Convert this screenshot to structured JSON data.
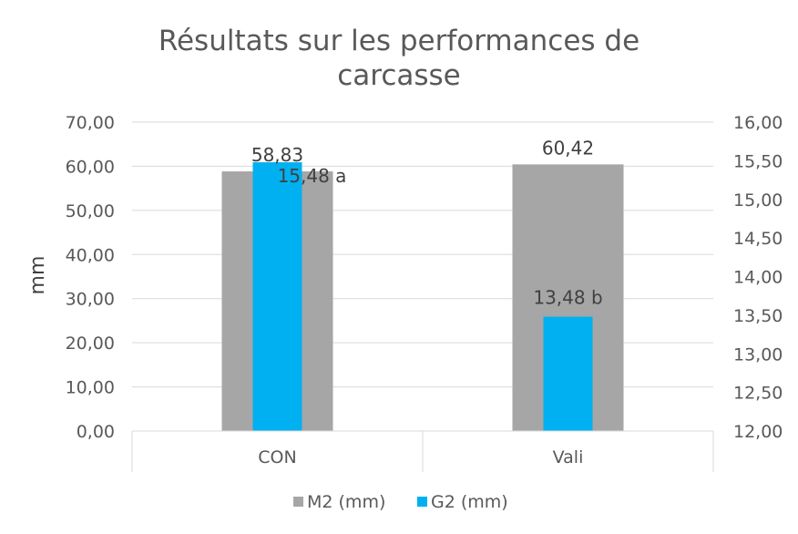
{
  "chart_data": {
    "type": "bar",
    "title": "Résultats sur les performances de carcasse",
    "title_lines": [
      "Résultats sur les performances de",
      "carcasse"
    ],
    "categories": [
      "CON",
      "Vali"
    ],
    "ylabel": "mm",
    "y_left": {
      "ylim": [
        0,
        70
      ],
      "ticks": [
        0,
        10,
        20,
        30,
        40,
        50,
        60,
        70
      ],
      "tick_labels": [
        "0,00",
        "10,00",
        "20,00",
        "30,00",
        "40,00",
        "50,00",
        "60,00",
        "70,00"
      ]
    },
    "y_right": {
      "ylim": [
        12,
        16
      ],
      "ticks": [
        12,
        12.5,
        13,
        13.5,
        14,
        14.5,
        15,
        15.5,
        16
      ],
      "tick_labels": [
        "12,00",
        "12,50",
        "13,00",
        "13,50",
        "14,00",
        "14,50",
        "15,00",
        "15,50",
        "16,00"
      ]
    },
    "series": [
      {
        "name": "M2 (mm)",
        "axis": "left",
        "color": "#a6a6a6",
        "values": [
          58.83,
          60.42
        ],
        "labels": [
          "58,83",
          "60,42"
        ]
      },
      {
        "name": "G2 (mm)",
        "axis": "right",
        "color": "#00b0f0",
        "values": [
          15.48,
          13.48
        ],
        "labels": [
          "15,48 a",
          "13,48 b"
        ]
      }
    ],
    "legend_position": "bottom",
    "grid": "horizontal"
  }
}
